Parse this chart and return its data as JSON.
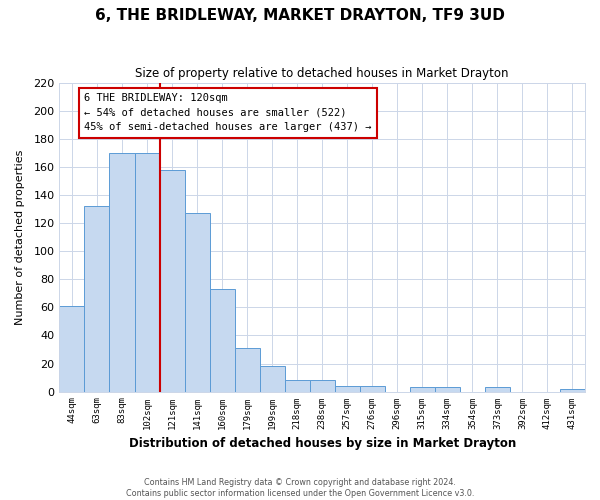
{
  "title": "6, THE BRIDLEWAY, MARKET DRAYTON, TF9 3UD",
  "subtitle": "Size of property relative to detached houses in Market Drayton",
  "xlabel": "Distribution of detached houses by size in Market Drayton",
  "ylabel": "Number of detached properties",
  "categories": [
    "44sqm",
    "63sqm",
    "83sqm",
    "102sqm",
    "121sqm",
    "141sqm",
    "160sqm",
    "179sqm",
    "199sqm",
    "218sqm",
    "238sqm",
    "257sqm",
    "276sqm",
    "296sqm",
    "315sqm",
    "334sqm",
    "354sqm",
    "373sqm",
    "392sqm",
    "412sqm",
    "431sqm"
  ],
  "values": [
    61,
    132,
    170,
    170,
    158,
    127,
    73,
    31,
    18,
    8,
    8,
    4,
    4,
    0,
    3,
    3,
    0,
    3,
    0,
    0,
    2
  ],
  "bar_color": "#c6d9f0",
  "bar_edge_color": "#5b9bd5",
  "bar_width": 1.0,
  "vline_color": "#cc0000",
  "ylim": [
    0,
    220
  ],
  "yticks": [
    0,
    20,
    40,
    60,
    80,
    100,
    120,
    140,
    160,
    180,
    200,
    220
  ],
  "annotation_box_title": "6 THE BRIDLEWAY: 120sqm",
  "annotation_line1": "← 54% of detached houses are smaller (522)",
  "annotation_line2": "45% of semi-detached houses are larger (437) →",
  "annotation_box_color": "#ffffff",
  "annotation_box_edge": "#cc0000",
  "footer1": "Contains HM Land Registry data © Crown copyright and database right 2024.",
  "footer2": "Contains public sector information licensed under the Open Government Licence v3.0.",
  "background_color": "#ffffff",
  "grid_color": "#ccd6e8"
}
